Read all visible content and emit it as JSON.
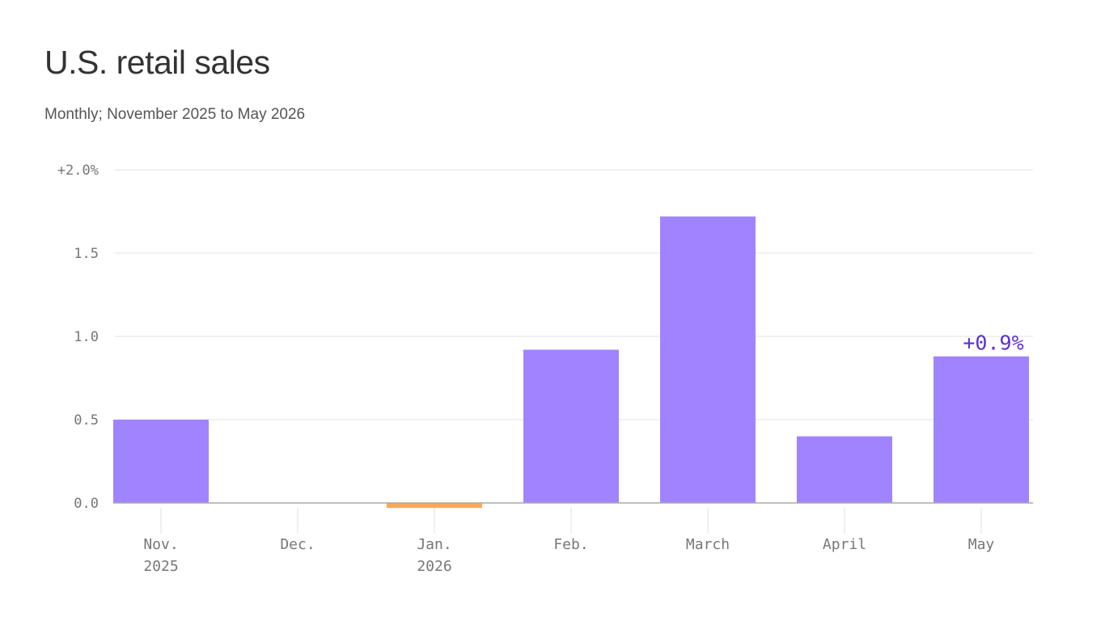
{
  "chart_data": {
    "type": "bar",
    "title": "U.S. retail sales",
    "subtitle": "Monthly; November 2025 to May 2026",
    "xlabel": "",
    "ylabel": "",
    "categories": [
      "Nov.",
      "Dec.",
      "Jan.",
      "Feb.",
      "March",
      "April",
      "May"
    ],
    "category_sublabels": [
      "2025",
      "",
      "2026",
      "",
      "",
      "",
      ""
    ],
    "values": [
      0.5,
      0.0,
      -0.03,
      0.92,
      1.72,
      0.4,
      0.88
    ],
    "ylim": [
      0,
      2.0
    ],
    "yticks": [
      0,
      0.5,
      1.0,
      1.5,
      2.0
    ],
    "ytick_labels": [
      "0.0",
      "0.5",
      "1.0",
      "1.5",
      "+2.0%"
    ],
    "grid": true,
    "data_labels": [
      {
        "index": 6,
        "text": "+0.9%"
      }
    ],
    "colors": {
      "positive": "#a084ff",
      "negative": "#f7a85e",
      "label": "#5b2fd6",
      "grid": "#e2e2e2",
      "axis": "#aaaaaa"
    }
  }
}
